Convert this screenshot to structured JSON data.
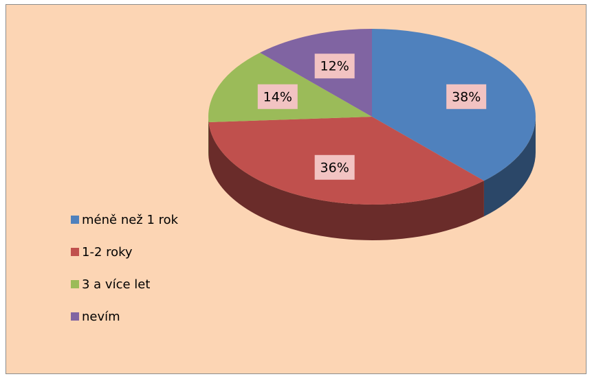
{
  "chart_data": {
    "type": "pie",
    "categories": [
      "méně než 1 rok",
      "1-2 roky",
      "3 a více let",
      "nevím"
    ],
    "values": [
      38,
      36,
      14,
      12
    ],
    "value_labels": [
      "38%",
      "36%",
      "14%",
      "12%"
    ],
    "colors": [
      "#4f81bd",
      "#c0504d",
      "#9bbb59",
      "#8064a2"
    ],
    "legend": "left"
  }
}
